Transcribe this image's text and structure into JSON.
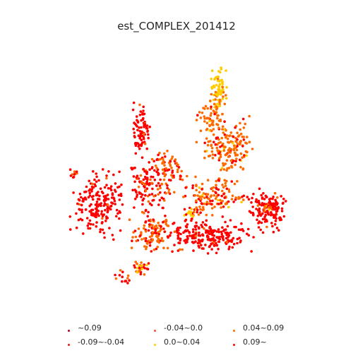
{
  "title": "est_COMPLEX_201412",
  "colors": {
    "class_0": "#b10026",
    "class_1": "#e31a1c",
    "class_2": "#fc4e2a",
    "class_3": "#ffcc00",
    "class_4": "#ff6a00",
    "class_5": "#ff0000"
  },
  "legend": {
    "items": [
      {
        "label": "~0.09",
        "color": "#b10026"
      },
      {
        "label": "-0.09~-0.04",
        "color": "#e31a1c"
      },
      {
        "label": "-0.04~0.0",
        "color": "#fc4e2a"
      },
      {
        "label": "0.0~0.04",
        "color": "#ffcc00"
      },
      {
        "label": "0.04~0.09",
        "color": "#ff6a00"
      },
      {
        "label": "0.09~",
        "color": "#ff0000"
      }
    ]
  }
}
